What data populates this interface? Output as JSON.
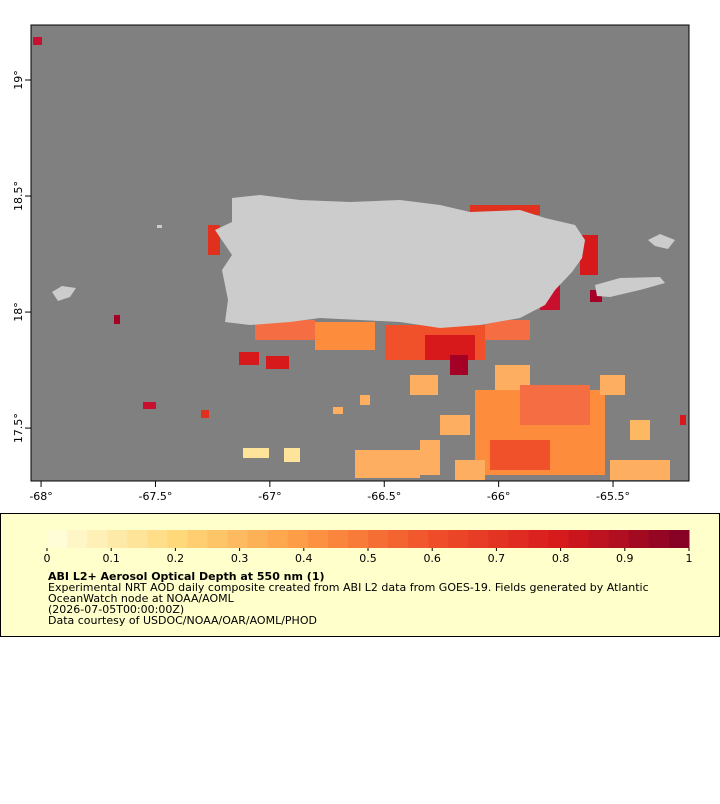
{
  "map": {
    "xlim": [
      -68.044,
      -65.168
    ],
    "ylim": [
      17.272,
      19.237
    ],
    "xticks": [
      {
        "value": -68,
        "label": "-68°"
      },
      {
        "value": -67.5,
        "label": "-67.5°"
      },
      {
        "value": -67,
        "label": "-67°"
      },
      {
        "value": -66.5,
        "label": "-66.5°"
      },
      {
        "value": -66,
        "label": "-66°"
      },
      {
        "value": -65.5,
        "label": "-65.5°"
      }
    ],
    "yticks": [
      {
        "value": 17.5,
        "label": "17.5°"
      },
      {
        "value": 18,
        "label": "18°"
      },
      {
        "value": 18.5,
        "label": "18.5°"
      },
      {
        "value": 19,
        "label": "19°"
      }
    ]
  },
  "colorbar": {
    "lim": [
      0,
      1
    ],
    "ticks": [
      0,
      0.1,
      0.2,
      0.3,
      0.4,
      0.5,
      0.6,
      0.7,
      0.8,
      0.9,
      1
    ],
    "colors": [
      "#ffffe0",
      "#fed97a",
      "#fd9a44",
      "#f0502a",
      "#d7191c",
      "#800026"
    ]
  },
  "legend": {
    "title": "ABI L2+ Aerosol Optical Depth at 550 nm (1)",
    "lines": [
      "Experimental NRT AOD daily composite created from ABI L2 data from GOES-19. Fields generated by Atlantic",
      "OceanWatch node at NOAA/AOML",
      "(2026-07-05T00:00:00Z)",
      "Data courtesy of USDOC/NOAA/OAR/AOML/PHOD"
    ]
  }
}
